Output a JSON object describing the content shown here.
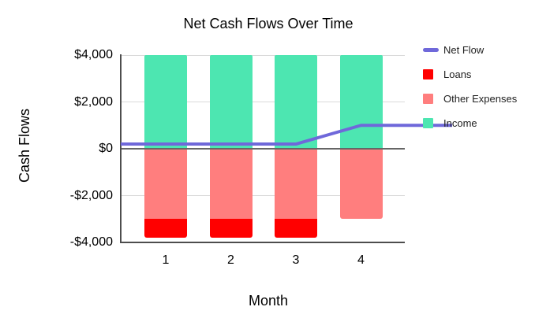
{
  "chart": {
    "title": "Net Cash Flows Over Time",
    "y_axis_title": "Cash Flows",
    "x_axis_title": "Month"
  },
  "chart_data": {
    "type": "combo",
    "stacked": true,
    "categories": [
      "1",
      "2",
      "3",
      "4"
    ],
    "series": [
      {
        "name": "Net Flow",
        "type": "line",
        "values": [
          200,
          200,
          200,
          1000
        ],
        "color": "#6f68da"
      },
      {
        "name": "Loans",
        "type": "bar",
        "values": [
          -800,
          -800,
          -800,
          0
        ],
        "color": "#ff0000"
      },
      {
        "name": "Other Expenses",
        "type": "bar",
        "values": [
          -3000,
          -3000,
          -3000,
          -3000
        ],
        "color": "#ff7e7e"
      },
      {
        "name": "Income",
        "type": "bar",
        "values": [
          4000,
          4000,
          4000,
          4000
        ],
        "color": "#4de6b1"
      }
    ],
    "title": "Net Cash Flows Over Time",
    "xlabel": "Month",
    "ylabel": "Cash Flows",
    "ylim": [
      -4000,
      4000
    ],
    "y_ticks": [
      {
        "value": 4000,
        "label": "$4,000"
      },
      {
        "value": 2000,
        "label": "$2,000"
      },
      {
        "value": 0,
        "label": "$0"
      },
      {
        "value": -2000,
        "label": "-$2,000"
      },
      {
        "value": -4000,
        "label": "-$4,000"
      }
    ],
    "grid": true,
    "legend_position": "right",
    "line_extends_past_plot_right": true
  },
  "colors": {
    "grid": "#d9d9d9",
    "zero_line": "#666666",
    "axis": "#4d4d4d",
    "background": "#ffffff",
    "text": "#000000",
    "legend_text": "#212121"
  }
}
